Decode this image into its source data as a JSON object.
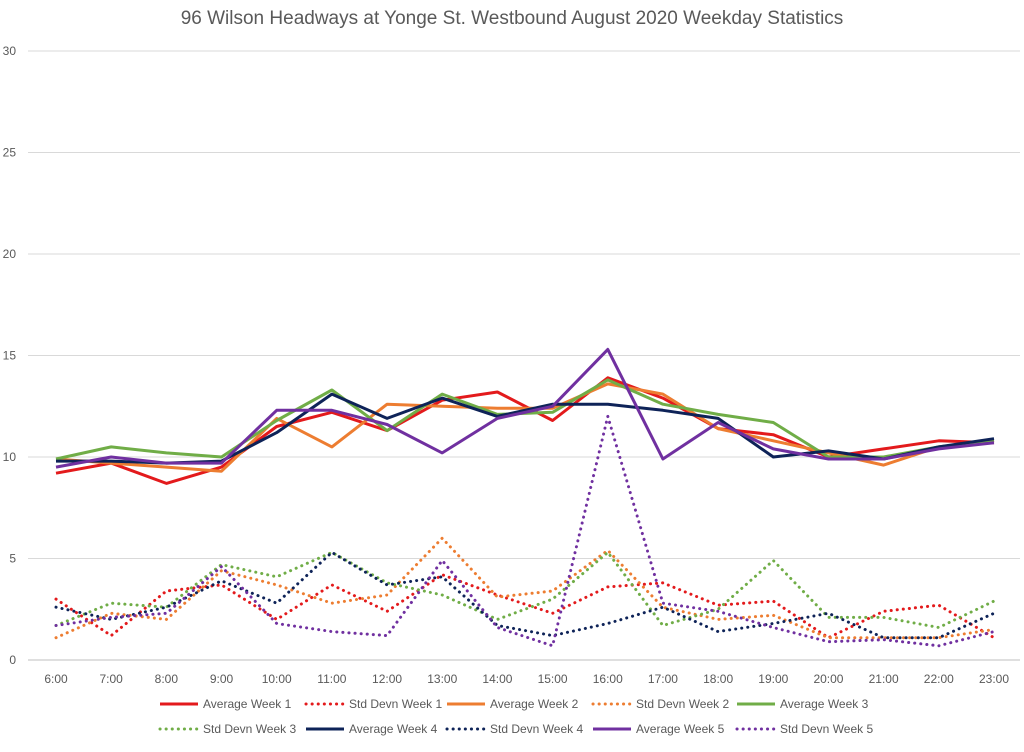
{
  "chart_data": {
    "type": "line",
    "title": "96 Wilson Headways at Yonge St. Westbound August 2020 Weekday Statistics",
    "xlabel": "",
    "ylabel": "",
    "categories": [
      "6:00",
      "7:00",
      "8:00",
      "9:00",
      "10:00",
      "11:00",
      "12:00",
      "13:00",
      "14:00",
      "15:00",
      "16:00",
      "17:00",
      "18:00",
      "19:00",
      "20:00",
      "21:00",
      "22:00",
      "23:00"
    ],
    "ylim": [
      0,
      30
    ],
    "yticks": [
      "0",
      "5",
      "10",
      "15",
      "20",
      "25",
      "30"
    ],
    "grid": "horizontal",
    "legend_position": "bottom",
    "series": [
      {
        "name": "Average Week 1",
        "color": "#e31a1c",
        "style": "solid",
        "values": [
          9.2,
          9.7,
          8.7,
          9.5,
          11.5,
          12.2,
          11.3,
          12.8,
          13.2,
          11.8,
          13.9,
          12.9,
          11.4,
          11.1,
          10.0,
          10.4,
          10.8,
          10.7
        ]
      },
      {
        "name": "Std Devn Week 1",
        "color": "#e31a1c",
        "style": "dotted",
        "values": [
          3.0,
          1.2,
          3.4,
          3.7,
          2.0,
          3.7,
          2.4,
          4.2,
          3.2,
          2.3,
          3.6,
          3.8,
          2.7,
          2.9,
          1.1,
          2.4,
          2.7,
          1.1
        ]
      },
      {
        "name": "Average Week 2",
        "color": "#ed7d31",
        "style": "solid",
        "values": [
          9.9,
          9.7,
          9.5,
          9.3,
          11.9,
          10.5,
          12.6,
          12.5,
          12.4,
          12.4,
          13.6,
          13.1,
          11.4,
          10.8,
          10.2,
          9.6,
          10.5,
          10.8
        ]
      },
      {
        "name": "Std Devn Week 2",
        "color": "#ed7d31",
        "style": "dotted",
        "values": [
          1.1,
          2.3,
          2.0,
          4.4,
          3.7,
          2.8,
          3.2,
          6.0,
          3.1,
          3.4,
          5.4,
          2.6,
          2.0,
          2.2,
          1.1,
          1.1,
          1.1,
          1.5
        ]
      },
      {
        "name": "Average Week 3",
        "color": "#70ad47",
        "style": "solid",
        "values": [
          9.9,
          10.5,
          10.2,
          10.0,
          11.8,
          13.3,
          11.3,
          13.1,
          12.1,
          12.2,
          13.8,
          12.6,
          12.1,
          11.7,
          10.0,
          10.0,
          10.5,
          10.8
        ]
      },
      {
        "name": "Std Devn Week 3",
        "color": "#70ad47",
        "style": "dotted",
        "values": [
          1.7,
          2.8,
          2.6,
          4.7,
          4.1,
          5.3,
          3.8,
          3.2,
          2.0,
          3.0,
          5.3,
          1.7,
          2.5,
          4.9,
          2.1,
          2.1,
          1.6,
          2.9
        ]
      },
      {
        "name": "Average Week 4",
        "color": "#0e2358",
        "style": "solid",
        "values": [
          9.8,
          9.8,
          9.7,
          9.8,
          11.2,
          13.1,
          11.9,
          12.9,
          12.0,
          12.6,
          12.6,
          12.3,
          11.9,
          10.0,
          10.3,
          9.9,
          10.5,
          10.9
        ]
      },
      {
        "name": "Std Devn Week 4",
        "color": "#0e2358",
        "style": "dotted",
        "values": [
          2.6,
          2.0,
          2.6,
          3.9,
          2.8,
          5.3,
          3.7,
          4.1,
          1.7,
          1.2,
          1.8,
          2.6,
          1.4,
          1.8,
          2.3,
          1.1,
          1.1,
          2.3
        ]
      },
      {
        "name": "Average Week 5",
        "color": "#7030a0",
        "style": "solid",
        "values": [
          9.5,
          10.0,
          9.7,
          9.7,
          12.3,
          12.3,
          11.6,
          10.2,
          11.9,
          12.5,
          15.3,
          9.9,
          11.7,
          10.4,
          9.9,
          9.9,
          10.4,
          10.7
        ]
      },
      {
        "name": "Std Devn Week 5",
        "color": "#7030a0",
        "style": "dotted",
        "values": [
          1.7,
          2.1,
          2.3,
          4.6,
          1.8,
          1.4,
          1.2,
          4.9,
          1.6,
          0.7,
          12.0,
          2.8,
          2.4,
          1.6,
          0.9,
          1.0,
          0.7,
          1.4
        ]
      }
    ]
  }
}
